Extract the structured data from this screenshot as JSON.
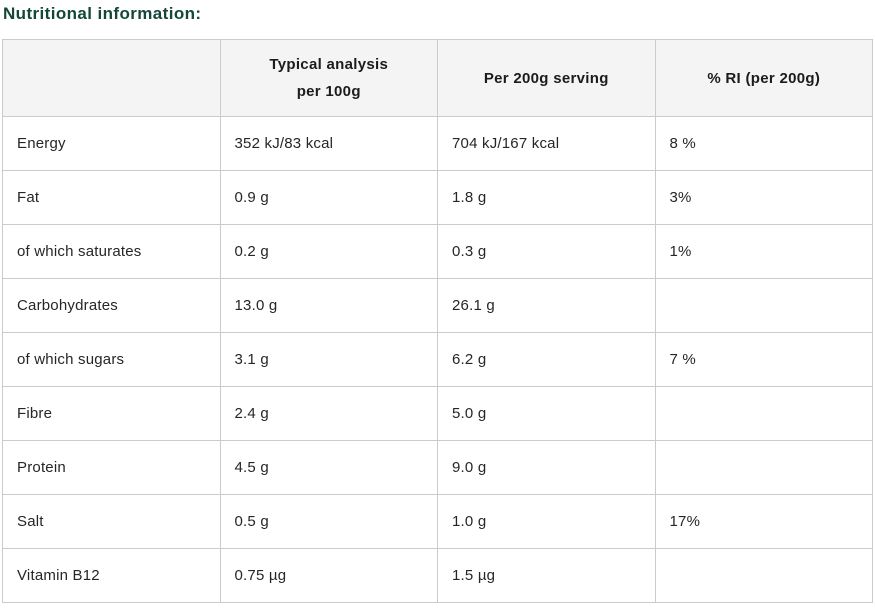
{
  "title": "Nutritional information:",
  "colors": {
    "title_green": "#15463a",
    "header_bg": "#f4f4f4",
    "header_text": "#1c1c1c",
    "border": "#cbcbcb",
    "text": "#262626"
  },
  "table": {
    "headers": [
      {
        "lines": [
          ""
        ]
      },
      {
        "lines": [
          "Typical analysis",
          "per 100g"
        ]
      },
      {
        "lines": [
          "Per 200g serving"
        ]
      },
      {
        "lines": [
          "% RI (per 200g)"
        ]
      }
    ],
    "column_keys": [
      "nutrient",
      "per_100g",
      "per_200g",
      "ri"
    ],
    "rows": [
      {
        "nutrient": "Energy",
        "per_100g": "352 kJ/83 kcal",
        "per_200g": "704 kJ/167 kcal",
        "ri": "8 %"
      },
      {
        "nutrient": "Fat",
        "per_100g": "0.9 g",
        "per_200g": "1.8 g",
        "ri": "3%"
      },
      {
        "nutrient": "of which saturates",
        "per_100g": "0.2 g",
        "per_200g": "0.3 g",
        "ri": "1%"
      },
      {
        "nutrient": "Carbohydrates",
        "per_100g": "13.0 g",
        "per_200g": "26.1 g",
        "ri": ""
      },
      {
        "nutrient": "of which sugars",
        "per_100g": "3.1 g",
        "per_200g": "6.2 g",
        "ri": "7 %"
      },
      {
        "nutrient": "Fibre",
        "per_100g": "2.4 g",
        "per_200g": "5.0 g",
        "ri": ""
      },
      {
        "nutrient": "Protein",
        "per_100g": "4.5 g",
        "per_200g": "9.0 g",
        "ri": ""
      },
      {
        "nutrient": "Salt",
        "per_100g": "0.5 g",
        "per_200g": "1.0 g",
        "ri": "17%"
      },
      {
        "nutrient": "Vitamin B12",
        "per_100g": "0.75 µg",
        "per_200g": "1.5 µg",
        "ri": ""
      }
    ]
  }
}
